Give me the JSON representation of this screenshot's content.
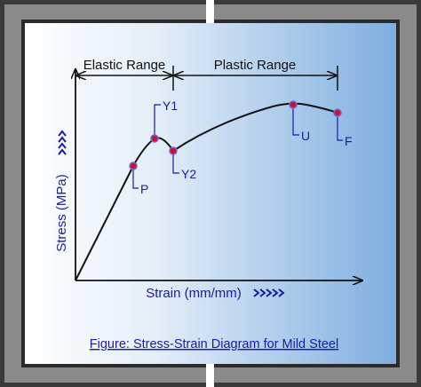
{
  "labels": {
    "elastic_range": "Elastic Range",
    "plastic_range": "Plastic Range",
    "y_axis": "Stress (MPa)",
    "x_axis": "Strain (mm/mm)"
  },
  "points": [
    {
      "label": "P"
    },
    {
      "label": "Y1"
    },
    {
      "label": "Y2"
    },
    {
      "label": "U"
    },
    {
      "label": "F"
    }
  ],
  "caption": "Figure: Stress-Strain Diagram for Mild Steel"
}
